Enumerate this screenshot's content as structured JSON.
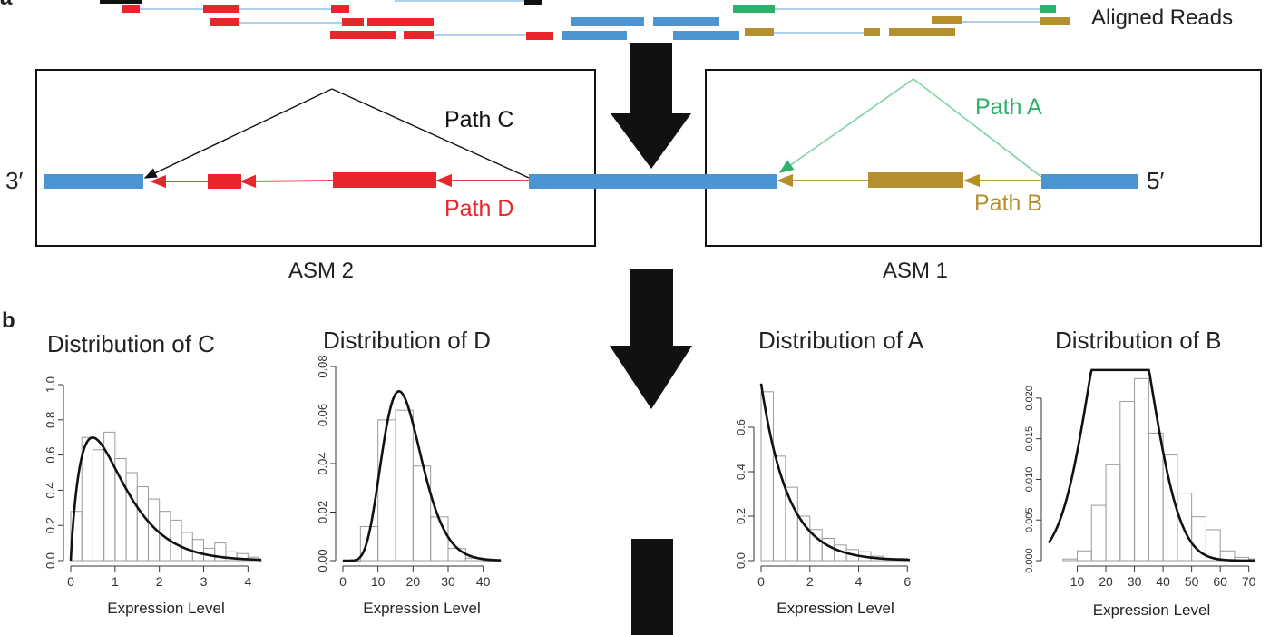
{
  "panels": {
    "a": "a",
    "b": "b"
  },
  "reads": {
    "label": "Aligned Reads"
  },
  "paths": {
    "c": {
      "label": "Path C",
      "color": "#111111"
    },
    "d": {
      "label": "Path D",
      "color": "#e8262b"
    },
    "a": {
      "label": "Path A",
      "color": "#2db06b"
    },
    "b": {
      "label": "Path B",
      "color": "#b58f2c"
    }
  },
  "colors": {
    "exon": "#4b95d3",
    "red": "#e8262b",
    "green": "#2db06b",
    "gold": "#b58f2c"
  },
  "ends": {
    "three_prime": "3′",
    "five_prime": "5′"
  },
  "asm": {
    "asm2": "ASM 2",
    "asm1": "ASM 1"
  },
  "chart_data": [
    {
      "type": "bar",
      "title": "Distribution of C",
      "xlabel": "Expression Level",
      "ylabel": "",
      "xlim": [
        0,
        4.3
      ],
      "ylim": [
        0,
        1.0
      ],
      "xticks": [
        0,
        1,
        2,
        3,
        4
      ],
      "yticks": [
        "0.0",
        "0.2",
        "0.4",
        "0.6",
        "0.8",
        "1.0"
      ],
      "bin_width": 0.25,
      "values": [
        0.28,
        0.7,
        0.63,
        0.73,
        0.58,
        0.5,
        0.42,
        0.35,
        0.28,
        0.23,
        0.16,
        0.12,
        0.07,
        0.1,
        0.05,
        0.04,
        0.02,
        0.0
      ],
      "curve": "gamma",
      "curve_params": {
        "shape": 1.9,
        "scale": 0.55,
        "scale_factor": 1.0
      }
    },
    {
      "type": "bar",
      "title": "Distribution of D",
      "xlabel": "Expression Level",
      "ylabel": "",
      "xlim": [
        0,
        45
      ],
      "ylim": [
        0,
        0.08
      ],
      "xticks": [
        0,
        10,
        20,
        30,
        40
      ],
      "yticks": [
        "0.00",
        "0.02",
        "0.04",
        "0.06",
        "0.08"
      ],
      "bin_width": 5,
      "values": [
        0.0,
        0.014,
        0.058,
        0.062,
        0.039,
        0.018,
        0.005,
        0.001,
        0.0
      ],
      "curve": "gamma",
      "curve_params": {
        "shape": 9,
        "scale": 2.0,
        "scale_factor": 1.0
      }
    },
    {
      "type": "bar",
      "title": "Distribution of A",
      "xlabel": "Expression Level",
      "ylabel": "",
      "xlim": [
        0,
        6.1
      ],
      "ylim": [
        0,
        0.8
      ],
      "xticks": [
        0,
        2,
        4,
        6
      ],
      "yticks": [
        "0.0",
        "0.2",
        "0.4",
        "0.6"
      ],
      "bin_width": 0.5,
      "values": [
        0.76,
        0.47,
        0.33,
        0.2,
        0.14,
        0.1,
        0.07,
        0.05,
        0.04,
        0.02,
        0.01,
        0.01
      ],
      "curve": "exp",
      "curve_params": {
        "rate": 0.9,
        "scale_factor": 0.885
      }
    },
    {
      "type": "bar",
      "title": "Distribution of B",
      "xlabel": "Expression Level",
      "ylabel": "",
      "xlim": [
        0,
        72
      ],
      "ylim": [
        0,
        0.023
      ],
      "xticks": [
        10,
        20,
        30,
        40,
        50,
        60,
        70
      ],
      "yticks": [
        "0.000",
        "0.005",
        "0.010",
        "0.015",
        "0.020"
      ],
      "bin_width": 5,
      "values": [
        0.0002,
        0.0012,
        0.0068,
        0.0118,
        0.0196,
        0.0224,
        0.0157,
        0.013,
        0.0083,
        0.0054,
        0.0038,
        0.0012,
        0.0004,
        0.0002
      ],
      "bin_start": 5,
      "curve": "normal",
      "curve_params": {
        "mean": 25.0,
        "sd": 10.5,
        "scale_factor": 0.98
      }
    }
  ]
}
